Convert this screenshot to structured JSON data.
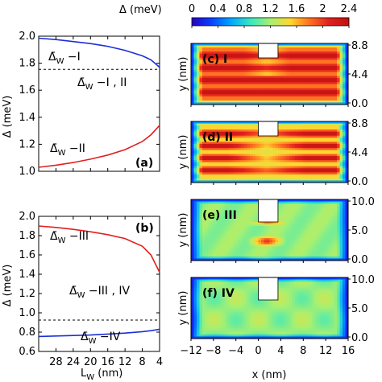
{
  "colorbar": {
    "label": "Δ (meV)",
    "ticks": [
      "0",
      "0.4",
      "0.8",
      "1.2",
      "1.6",
      "2",
      "2.4"
    ],
    "min": 0,
    "max": 2.4,
    "colormap": [
      "#2a00c0",
      "#0a40ff",
      "#00a8ff",
      "#38e8c0",
      "#a8f070",
      "#ffd830",
      "#ff7020",
      "#e02020",
      "#c01010"
    ]
  },
  "chart_data": [
    {
      "type": "line",
      "panel": "(a)",
      "xlabel": "L_W (nm)",
      "ylabel": "Δ (meV)",
      "xlim": [
        32,
        4
      ],
      "ylim": [
        1.0,
        2.0
      ],
      "y_ticks": [
        "1.0",
        "1.2",
        "1.4",
        "1.6",
        "1.8",
        "2.0"
      ],
      "series": [
        {
          "name": "Δ̄_W − I",
          "color": "#1a2fd6",
          "x": [
            32,
            28,
            24,
            20,
            16,
            12,
            8,
            6,
            4
          ],
          "y": [
            1.985,
            1.975,
            1.96,
            1.945,
            1.925,
            1.895,
            1.855,
            1.825,
            1.77
          ]
        },
        {
          "name": "Δ̄_W − II",
          "color": "#e02020",
          "x": [
            32,
            28,
            24,
            20,
            16,
            12,
            8,
            6,
            4
          ],
          "y": [
            1.03,
            1.045,
            1.065,
            1.09,
            1.12,
            1.16,
            1.22,
            1.27,
            1.34
          ]
        },
        {
          "name": "Δ̄_W − I , II",
          "color": "#000000",
          "dashed": true,
          "x": [
            32,
            4
          ],
          "y": [
            1.755,
            1.755
          ]
        }
      ]
    },
    {
      "type": "line",
      "panel": "(b)",
      "xlabel": "L_W (nm)",
      "ylabel": "Δ (meV)",
      "xlim": [
        32,
        4
      ],
      "ylim": [
        0.6,
        2.0
      ],
      "x_ticks": [
        "28",
        "24",
        "20",
        "16",
        "12",
        "8",
        "4"
      ],
      "y_ticks": [
        "0.6",
        "0.8",
        "1.0",
        "1.2",
        "1.4",
        "1.6",
        "1.8",
        "2.0"
      ],
      "series": [
        {
          "name": "Δ̄_W − III",
          "color": "#e02020",
          "x": [
            32,
            28,
            24,
            20,
            16,
            12,
            8,
            6,
            4
          ],
          "y": [
            1.9,
            1.885,
            1.865,
            1.84,
            1.81,
            1.77,
            1.69,
            1.6,
            1.42
          ]
        },
        {
          "name": "Δ̄_W − IV",
          "color": "#1a2fd6",
          "x": [
            32,
            28,
            24,
            20,
            16,
            12,
            8,
            6,
            4
          ],
          "y": [
            0.755,
            0.76,
            0.765,
            0.77,
            0.78,
            0.79,
            0.805,
            0.815,
            0.83
          ]
        },
        {
          "name": "Δ̄_W − III , IV",
          "color": "#000000",
          "dashed": true,
          "x": [
            32,
            4
          ],
          "y": [
            0.925,
            0.925
          ]
        }
      ]
    },
    {
      "type": "heatmap",
      "panel": "(c) I",
      "ylabel": "y (nm)",
      "y_ticks": [
        "8.8",
        "4.4",
        "0.0"
      ],
      "xlim": [
        -12,
        16
      ],
      "pattern": "horizontal stripes",
      "base_level": 2.05,
      "amplitude": 0.3,
      "stripes": 5
    },
    {
      "type": "heatmap",
      "panel": "(d) II",
      "ylabel": "y (nm)",
      "y_ticks": [
        "8.8",
        "4.4",
        "0.0"
      ],
      "xlim": [
        -12,
        16
      ],
      "pattern": "horizontal stripes with central suppression",
      "base_level": 1.9,
      "amplitude": 0.45,
      "stripes": 5
    },
    {
      "type": "heatmap",
      "panel": "(e) III",
      "ylabel": "y (nm)",
      "y_ticks": [
        "10.0",
        "5.0",
        "0.0"
      ],
      "xlim": [
        -12,
        16
      ],
      "pattern": "uniform with central bright spots",
      "base_level": 1.15,
      "amplitude": 0.85
    },
    {
      "type": "heatmap",
      "panel": "(f) IV",
      "ylabel": "y (nm)",
      "y_ticks": [
        "10.0",
        "5.0",
        "0.0"
      ],
      "xlim": [
        -12,
        16
      ],
      "xlabel": "x (nm)",
      "x_ticks": [
        "−12",
        "−8",
        "−4",
        "0",
        "4",
        "8",
        "12",
        "16"
      ],
      "pattern": "uniform",
      "base_level": 1.15,
      "amplitude": 0.15
    }
  ]
}
